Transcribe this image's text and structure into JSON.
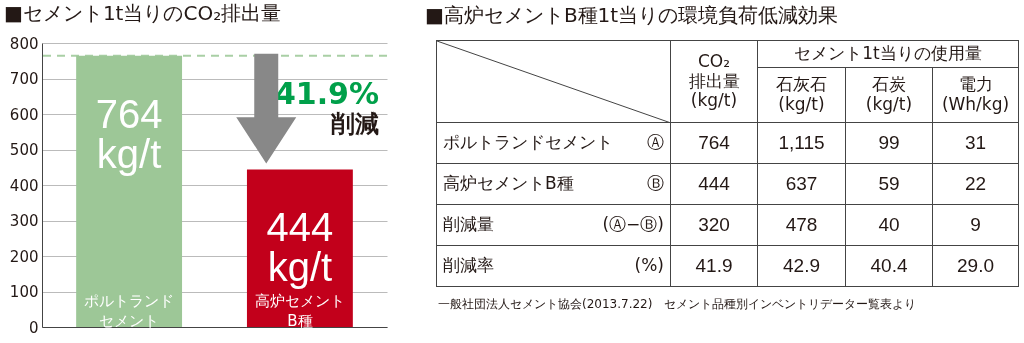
{
  "chart_data": [
    {
      "type": "bar",
      "title": "■セメント1t当りのCO₂排出量",
      "categories": [
        "ポルトランドセメント",
        "高炉セメントB種"
      ],
      "values": [
        764,
        444
      ],
      "colors": [
        "#9dc797",
        "#c2001b"
      ],
      "value_labels": [
        "764\nkg/t",
        "444\nkg/t"
      ],
      "ylim": [
        0,
        800
      ],
      "yticks": [
        0,
        100,
        200,
        300,
        400,
        500,
        600,
        700,
        800
      ],
      "grid": "y",
      "ref_lines": [
        {
          "axis": "y",
          "value": 764,
          "color": "#a9cfa5",
          "line_style": "dashed"
        }
      ],
      "annotations": [
        "41.9%",
        "削減"
      ]
    },
    {
      "type": "other",
      "title": "■高炉セメントB種1t当りの環境負荷低減効果",
      "annotations": [
        "CO₂\n排出量\n(kg/t)",
        "セメント1t当りの使用量",
        "石灰石\n(kg/t)",
        "石炭\n(kg/t)",
        "電力\n(Wh/kg)",
        "ポルトランドセメント",
        "Ⓐ",
        "764",
        "1,115",
        "99",
        "31",
        "高炉セメントB種",
        "Ⓑ",
        "444",
        "637",
        "59",
        "22",
        "削減量",
        "(Ⓐ−Ⓑ)",
        "320",
        "478",
        "40",
        "9",
        "削減率",
        "(%)",
        "41.9",
        "42.9",
        "40.4",
        "29.0",
        "一般社団法人セメント協会(2013.7.22)　セメント品種別インベントリデーター覧表より"
      ]
    }
  ]
}
